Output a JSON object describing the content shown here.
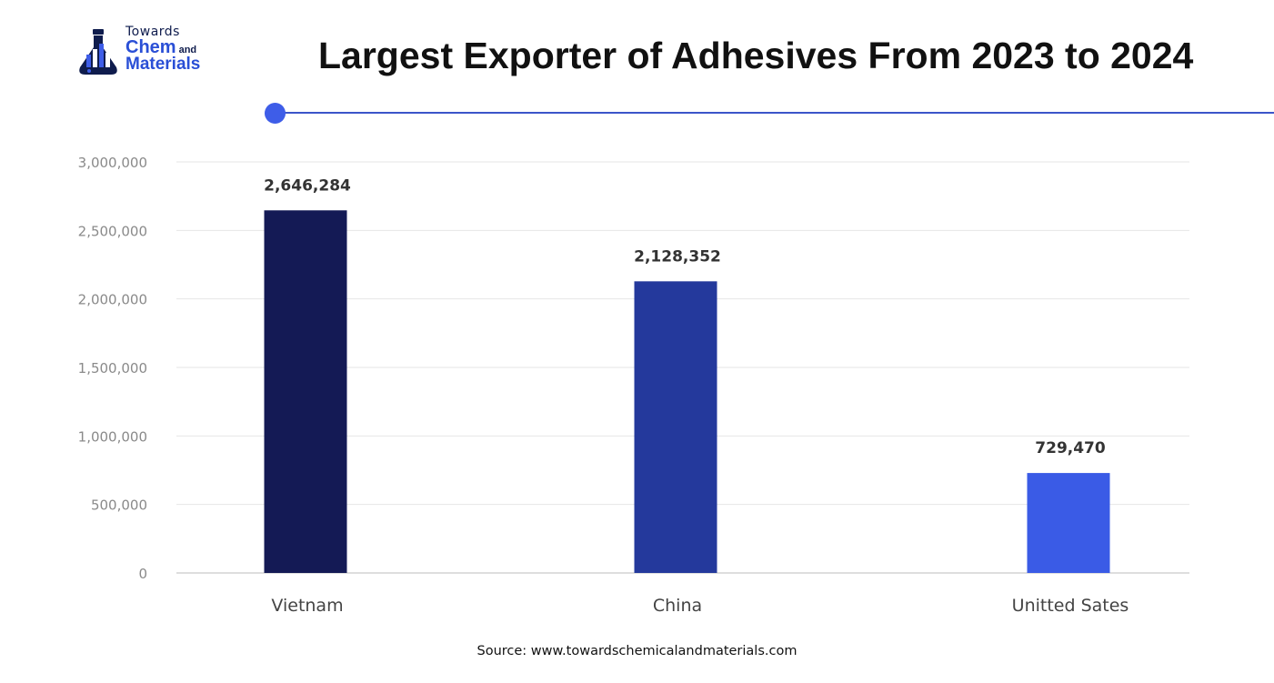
{
  "brand": {
    "logo_line1": "Towards",
    "logo_line2": "Chem",
    "logo_and": "and",
    "logo_line3": "Materials"
  },
  "title": "Largest Exporter of Adhesives From 2023 to 2024",
  "source": "Source: www.towardschemicalandmaterials.com",
  "colors": {
    "bar_vietnam": "#141a55",
    "bar_china": "#24399c",
    "bar_us": "#3a5be6",
    "accent": "#3b55c9"
  },
  "chart_data": {
    "type": "bar",
    "categories": [
      "Vietnam",
      "China",
      "Unitted Sates"
    ],
    "values": [
      2646284,
      2128352,
      729470
    ],
    "value_labels": [
      "2,646,284",
      "2,128,352",
      "729,470"
    ],
    "title": "Largest Exporter of Adhesives From 2023 to 2024",
    "xlabel": "",
    "ylabel": "",
    "ylim": [
      0,
      3000000
    ],
    "yticks": [
      0,
      500000,
      1000000,
      1500000,
      2000000,
      2500000,
      3000000
    ],
    "ytick_labels": [
      "0",
      "500,000",
      "1,000,000",
      "1,500,000",
      "2,000,000",
      "2,500,000",
      "3,000,000"
    ],
    "grid": true,
    "legend": "none"
  }
}
